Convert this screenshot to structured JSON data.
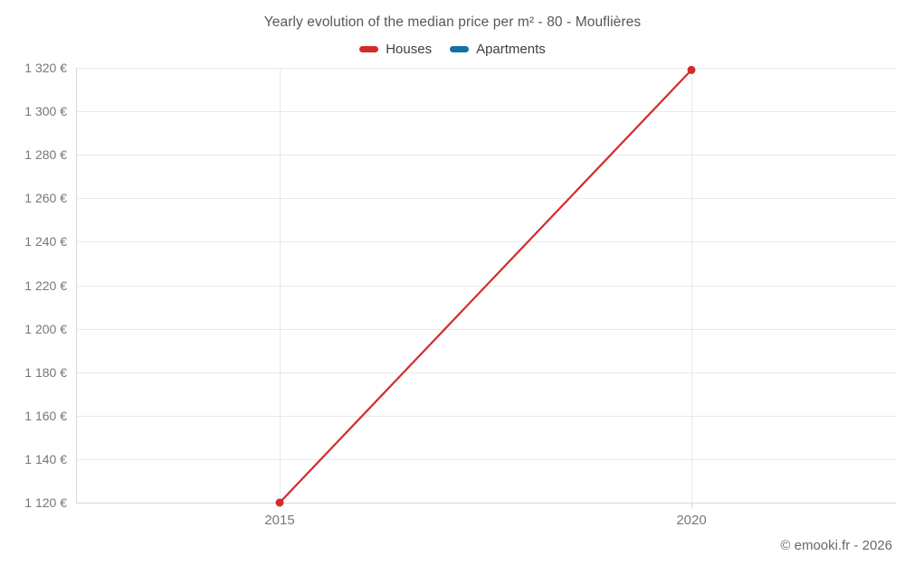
{
  "chart_data": {
    "type": "line",
    "title": "Yearly evolution of the median price per m² - 80 - Mouflières",
    "x_ticks": [
      2015,
      2020
    ],
    "x_tick_labels": [
      "2015",
      "2020"
    ],
    "y_ticks": [
      1120,
      1140,
      1160,
      1180,
      1200,
      1220,
      1240,
      1260,
      1280,
      1300,
      1320
    ],
    "y_tick_labels": [
      "1 120 €",
      "1 140 €",
      "1 160 €",
      "1 180 €",
      "1 200 €",
      "1 220 €",
      "1 240 €",
      "1 260 €",
      "1 280 €",
      "1 300 €",
      "1 320 €"
    ],
    "ylim": [
      1120,
      1320
    ],
    "grid": true,
    "legend_position": "top",
    "series": [
      {
        "name": "Houses",
        "color": "#d32b2b",
        "x": [
          2015,
          2020
        ],
        "values": [
          1120,
          1319
        ]
      },
      {
        "name": "Apartments",
        "color": "#1272a5",
        "x": [],
        "values": []
      }
    ]
  },
  "footer": {
    "copyright": "© emooki.fr - 2026"
  }
}
